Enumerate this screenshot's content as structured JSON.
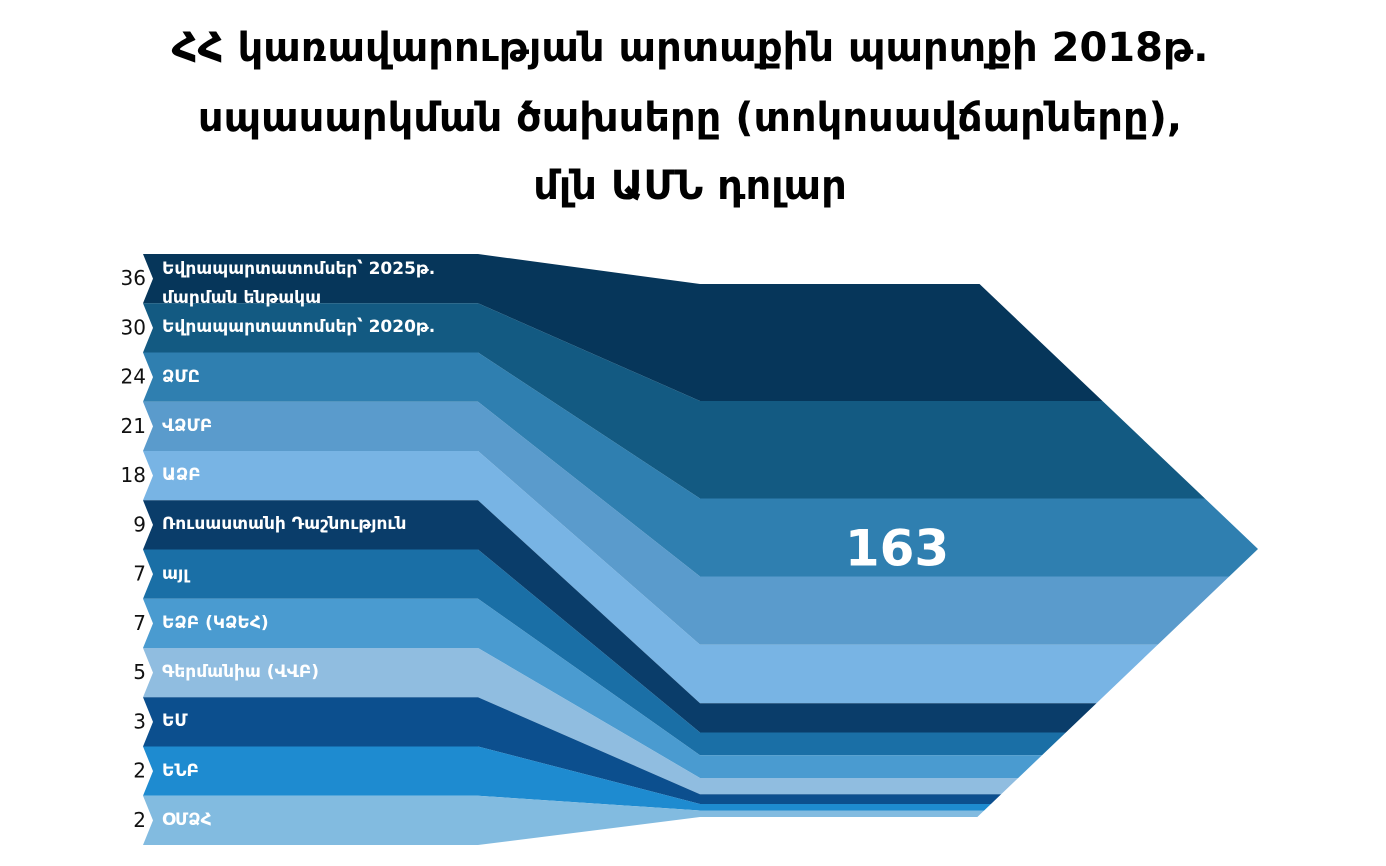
{
  "chart_data": {
    "type": "flow",
    "title_lines": [
      "ՀՀ կառավարության արտաքին պարտքի 2018թ.",
      "սպասարկման ծախսերը (տոկոսավճարները),",
      "մլն ԱՄՆ դոլար"
    ],
    "categories": [
      "Եվրապարտատոմսեր՝ 2025թ. մարման ենթակա",
      "Եվրապարտատոմսեր՝ 2020թ.",
      "ՁՄԸ",
      "ՎՁՄԲ",
      "ԱՁԲ",
      "Ռուսաստանի Դաշնություն",
      "այլ",
      "ԵՁԲ (ԿՁԵՀ)",
      "Գերմանիա (ՎՎԲ)",
      "ԵՄ",
      "ԵՆԲ",
      "ՕՄՁՀ"
    ],
    "values": [
      36,
      30,
      24,
      21,
      18,
      9,
      7,
      7,
      5,
      3,
      2,
      2
    ],
    "colors": [
      "#06365a",
      "#135a82",
      "#2f7fb0",
      "#5a9bcc",
      "#78b4e4",
      "#0a3d6a",
      "#1a6fa6",
      "#4a9bd0",
      "#90bde0",
      "#0c4f8e",
      "#1e8bd0",
      "#82bbe0"
    ],
    "total": 163
  }
}
